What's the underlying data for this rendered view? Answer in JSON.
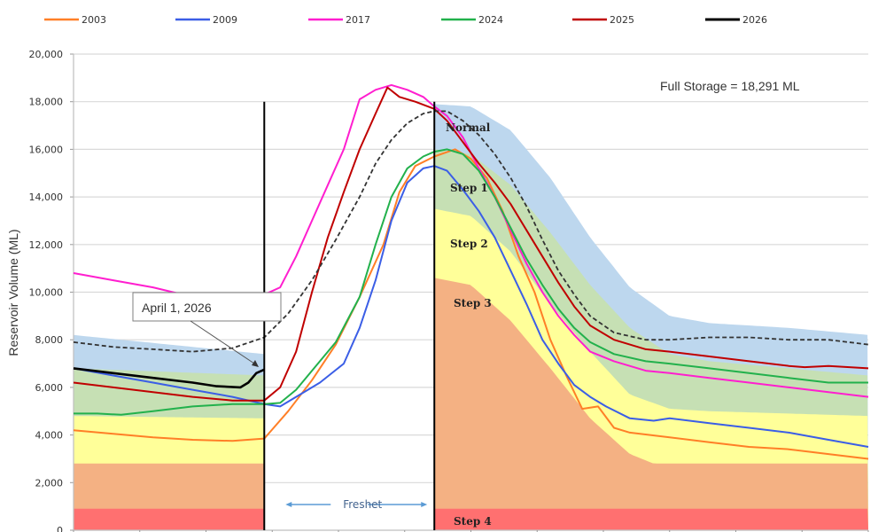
{
  "chart_data": {
    "type": "line",
    "title": "",
    "xlabel": "",
    "ylabel": "Reservoir Volume (ML)",
    "ylim": [
      0,
      20000
    ],
    "xlim": [
      0,
      100
    ],
    "x_unit": "relative position across water year (no x tick labels shown)",
    "y_ticks": [
      0,
      2000,
      4000,
      6000,
      8000,
      10000,
      12000,
      14000,
      16000,
      18000,
      20000
    ],
    "y_tick_labels": [
      "0",
      "2,000",
      "4,000",
      "6,000",
      "8,000",
      "10,000",
      "12,000",
      "14,000",
      "16,000",
      "18,000",
      "20,000"
    ],
    "grid": true,
    "legend_position": "top",
    "legend": [
      "2003",
      "2009",
      "2017",
      "2024",
      "2025",
      "2026"
    ],
    "annotations": {
      "full_storage": "Full Storage  = 18,291 ML",
      "callout": "April 1, 2026",
      "freshet": "Freshet"
    },
    "markers": {
      "freshet_start": 24,
      "freshet_end": 45.4
    },
    "zones": [
      {
        "name": "Normal",
        "label": "Normal",
        "color": "#bdd7ee",
        "upper": [
          [
            0,
            8200
          ],
          [
            24,
            7400
          ],
          [
            24,
            7400
          ],
          [
            45.4,
            17900
          ],
          [
            50,
            17800
          ],
          [
            55,
            16800
          ],
          [
            60,
            14800
          ],
          [
            65,
            12300
          ],
          [
            70,
            10200
          ],
          [
            75,
            9000
          ],
          [
            80,
            8700
          ],
          [
            90,
            8500
          ],
          [
            100,
            8200
          ]
        ]
      },
      {
        "name": "Step 1",
        "label": "Step 1",
        "color": "#c6e0b4",
        "upper": [
          [
            0,
            6800
          ],
          [
            24,
            6500
          ],
          [
            24,
            6500
          ],
          [
            45.4,
            16000
          ],
          [
            50,
            15800
          ],
          [
            55,
            14500
          ],
          [
            60,
            12500
          ],
          [
            65,
            10300
          ],
          [
            70,
            8500
          ],
          [
            75,
            7400
          ],
          [
            80,
            7100
          ],
          [
            90,
            6800
          ],
          [
            100,
            6500
          ]
        ]
      },
      {
        "name": "Step 2",
        "label": "Step 2",
        "color": "#ffff99",
        "upper": [
          [
            0,
            4800
          ],
          [
            24,
            4700
          ],
          [
            24,
            4700
          ],
          [
            45.4,
            13500
          ],
          [
            50,
            13200
          ],
          [
            55,
            11700
          ],
          [
            60,
            9500
          ],
          [
            65,
            7500
          ],
          [
            70,
            5700
          ],
          [
            75,
            5100
          ],
          [
            80,
            5000
          ],
          [
            90,
            4900
          ],
          [
            100,
            4800
          ]
        ]
      },
      {
        "name": "Step 3",
        "label": "Step 3",
        "color": "#f4b183",
        "upper": [
          [
            0,
            2800
          ],
          [
            24,
            2800
          ],
          [
            24,
            2800
          ],
          [
            45.4,
            10600
          ],
          [
            50,
            10300
          ],
          [
            55,
            8800
          ],
          [
            60,
            6800
          ],
          [
            65,
            4700
          ],
          [
            70,
            3200
          ],
          [
            73,
            2800
          ],
          [
            100,
            2800
          ]
        ]
      },
      {
        "name": "Step 4",
        "label": "Step 4",
        "color": "#ff7070",
        "upper": [
          [
            0,
            900
          ],
          [
            24,
            900
          ],
          [
            24,
            900
          ],
          [
            45.4,
            900
          ],
          [
            100,
            900
          ]
        ]
      }
    ],
    "series": [
      {
        "name": "2003",
        "color": "#ff7f27",
        "points": [
          [
            0,
            4200
          ],
          [
            5,
            4050
          ],
          [
            10,
            3900
          ],
          [
            15,
            3800
          ],
          [
            20,
            3750
          ],
          [
            24,
            3850
          ],
          [
            27,
            5000
          ],
          [
            30,
            6300
          ],
          [
            33,
            7800
          ],
          [
            36,
            9800
          ],
          [
            39,
            12000
          ],
          [
            41,
            14200
          ],
          [
            43,
            15300
          ],
          [
            45.4,
            15700
          ],
          [
            48,
            16000
          ],
          [
            50,
            15600
          ],
          [
            52,
            14800
          ],
          [
            54,
            13400
          ],
          [
            56,
            11500
          ],
          [
            58,
            10000
          ],
          [
            60,
            8000
          ],
          [
            62,
            6500
          ],
          [
            64,
            5100
          ],
          [
            66,
            5200
          ],
          [
            68,
            4300
          ],
          [
            70,
            4100
          ],
          [
            75,
            3900
          ],
          [
            80,
            3700
          ],
          [
            85,
            3500
          ],
          [
            90,
            3400
          ],
          [
            95,
            3200
          ],
          [
            100,
            3000
          ]
        ]
      },
      {
        "name": "2009",
        "color": "#3b5ee6",
        "points": [
          [
            0,
            6800
          ],
          [
            5,
            6500
          ],
          [
            10,
            6200
          ],
          [
            15,
            5900
          ],
          [
            20,
            5600
          ],
          [
            24,
            5300
          ],
          [
            26,
            5200
          ],
          [
            28,
            5600
          ],
          [
            31,
            6200
          ],
          [
            34,
            7000
          ],
          [
            36,
            8500
          ],
          [
            38,
            10500
          ],
          [
            40,
            13000
          ],
          [
            42,
            14600
          ],
          [
            44,
            15200
          ],
          [
            45.4,
            15300
          ],
          [
            47,
            15100
          ],
          [
            49,
            14300
          ],
          [
            51,
            13400
          ],
          [
            53,
            12300
          ],
          [
            55,
            10900
          ],
          [
            57,
            9500
          ],
          [
            59,
            8000
          ],
          [
            61,
            7000
          ],
          [
            63,
            6100
          ],
          [
            65,
            5600
          ],
          [
            67,
            5200
          ],
          [
            70,
            4700
          ],
          [
            73,
            4600
          ],
          [
            75,
            4700
          ],
          [
            80,
            4500
          ],
          [
            85,
            4300
          ],
          [
            90,
            4100
          ],
          [
            95,
            3800
          ],
          [
            100,
            3500
          ]
        ]
      },
      {
        "name": "2017",
        "color": "#ff1ecf",
        "points": [
          [
            0,
            10800
          ],
          [
            5,
            10500
          ],
          [
            10,
            10200
          ],
          [
            15,
            9800
          ],
          [
            20,
            9500
          ],
          [
            24,
            9900
          ],
          [
            26,
            10200
          ],
          [
            28,
            11500
          ],
          [
            30,
            13000
          ],
          [
            32,
            14500
          ],
          [
            34,
            16000
          ],
          [
            36,
            18100
          ],
          [
            38,
            18500
          ],
          [
            40,
            18700
          ],
          [
            42,
            18500
          ],
          [
            44,
            18200
          ],
          [
            45.4,
            17800
          ],
          [
            47,
            17400
          ],
          [
            49,
            16500
          ],
          [
            51,
            15200
          ],
          [
            53,
            14000
          ],
          [
            55,
            12600
          ],
          [
            57,
            11200
          ],
          [
            59,
            10000
          ],
          [
            61,
            9000
          ],
          [
            63,
            8200
          ],
          [
            65,
            7500
          ],
          [
            68,
            7100
          ],
          [
            72,
            6700
          ],
          [
            75,
            6600
          ],
          [
            80,
            6400
          ],
          [
            85,
            6200
          ],
          [
            90,
            6000
          ],
          [
            95,
            5800
          ],
          [
            100,
            5600
          ]
        ]
      },
      {
        "name": "2024",
        "color": "#22b14c",
        "points": [
          [
            0,
            4900
          ],
          [
            3,
            4900
          ],
          [
            6,
            4850
          ],
          [
            10,
            5000
          ],
          [
            15,
            5200
          ],
          [
            20,
            5300
          ],
          [
            24,
            5300
          ],
          [
            26,
            5350
          ],
          [
            28,
            5900
          ],
          [
            30,
            6700
          ],
          [
            33,
            7900
          ],
          [
            36,
            9800
          ],
          [
            38,
            12000
          ],
          [
            40,
            14000
          ],
          [
            42,
            15200
          ],
          [
            44,
            15700
          ],
          [
            45.4,
            15900
          ],
          [
            47,
            16000
          ],
          [
            49,
            15800
          ],
          [
            51,
            15100
          ],
          [
            53,
            14000
          ],
          [
            55,
            12700
          ],
          [
            57,
            11400
          ],
          [
            59,
            10300
          ],
          [
            61,
            9300
          ],
          [
            63,
            8500
          ],
          [
            65,
            7900
          ],
          [
            68,
            7400
          ],
          [
            72,
            7100
          ],
          [
            75,
            7000
          ],
          [
            80,
            6800
          ],
          [
            85,
            6600
          ],
          [
            90,
            6400
          ],
          [
            95,
            6200
          ],
          [
            100,
            6200
          ]
        ]
      },
      {
        "name": "2025",
        "color": "#c00000",
        "points": [
          [
            0,
            6200
          ],
          [
            5,
            6000
          ],
          [
            10,
            5800
          ],
          [
            15,
            5600
          ],
          [
            20,
            5450
          ],
          [
            24,
            5450
          ],
          [
            26,
            6000
          ],
          [
            28,
            7500
          ],
          [
            30,
            10000
          ],
          [
            32,
            12300
          ],
          [
            34,
            14200
          ],
          [
            36,
            16000
          ],
          [
            38,
            17500
          ],
          [
            39.5,
            18600
          ],
          [
            41,
            18200
          ],
          [
            43,
            18000
          ],
          [
            45.4,
            17700
          ],
          [
            47,
            17200
          ],
          [
            49,
            16300
          ],
          [
            51,
            15400
          ],
          [
            53,
            14600
          ],
          [
            55,
            13700
          ],
          [
            57,
            12600
          ],
          [
            59,
            11500
          ],
          [
            61,
            10400
          ],
          [
            63,
            9400
          ],
          [
            65,
            8600
          ],
          [
            68,
            8000
          ],
          [
            72,
            7600
          ],
          [
            75,
            7500
          ],
          [
            80,
            7300
          ],
          [
            85,
            7100
          ],
          [
            90,
            6900
          ],
          [
            92,
            6850
          ],
          [
            95,
            6900
          ],
          [
            100,
            6800
          ]
        ]
      },
      {
        "name": "2026",
        "color": "#000000",
        "points": [
          [
            0,
            6800
          ],
          [
            5,
            6600
          ],
          [
            10,
            6400
          ],
          [
            15,
            6200
          ],
          [
            18,
            6050
          ],
          [
            21,
            6000
          ],
          [
            22,
            6200
          ],
          [
            23,
            6600
          ],
          [
            24,
            6750
          ]
        ]
      },
      {
        "name": "Normal",
        "color": "#333333",
        "dashed": true,
        "points": [
          [
            0,
            7900
          ],
          [
            5,
            7700
          ],
          [
            10,
            7600
          ],
          [
            15,
            7500
          ],
          [
            20,
            7650
          ],
          [
            24,
            8100
          ],
          [
            27,
            9100
          ],
          [
            30,
            10500
          ],
          [
            33,
            12200
          ],
          [
            36,
            14000
          ],
          [
            38,
            15400
          ],
          [
            40,
            16400
          ],
          [
            42,
            17100
          ],
          [
            44,
            17500
          ],
          [
            45.4,
            17600
          ],
          [
            47,
            17600
          ],
          [
            49,
            17200
          ],
          [
            51,
            16600
          ],
          [
            53,
            15800
          ],
          [
            55,
            14800
          ],
          [
            57,
            13600
          ],
          [
            59,
            12200
          ],
          [
            61,
            10900
          ],
          [
            63,
            9900
          ],
          [
            65,
            9000
          ],
          [
            68,
            8300
          ],
          [
            72,
            8000
          ],
          [
            75,
            8000
          ],
          [
            80,
            8100
          ],
          [
            85,
            8100
          ],
          [
            90,
            8000
          ],
          [
            95,
            8000
          ],
          [
            100,
            7800
          ]
        ]
      }
    ]
  }
}
